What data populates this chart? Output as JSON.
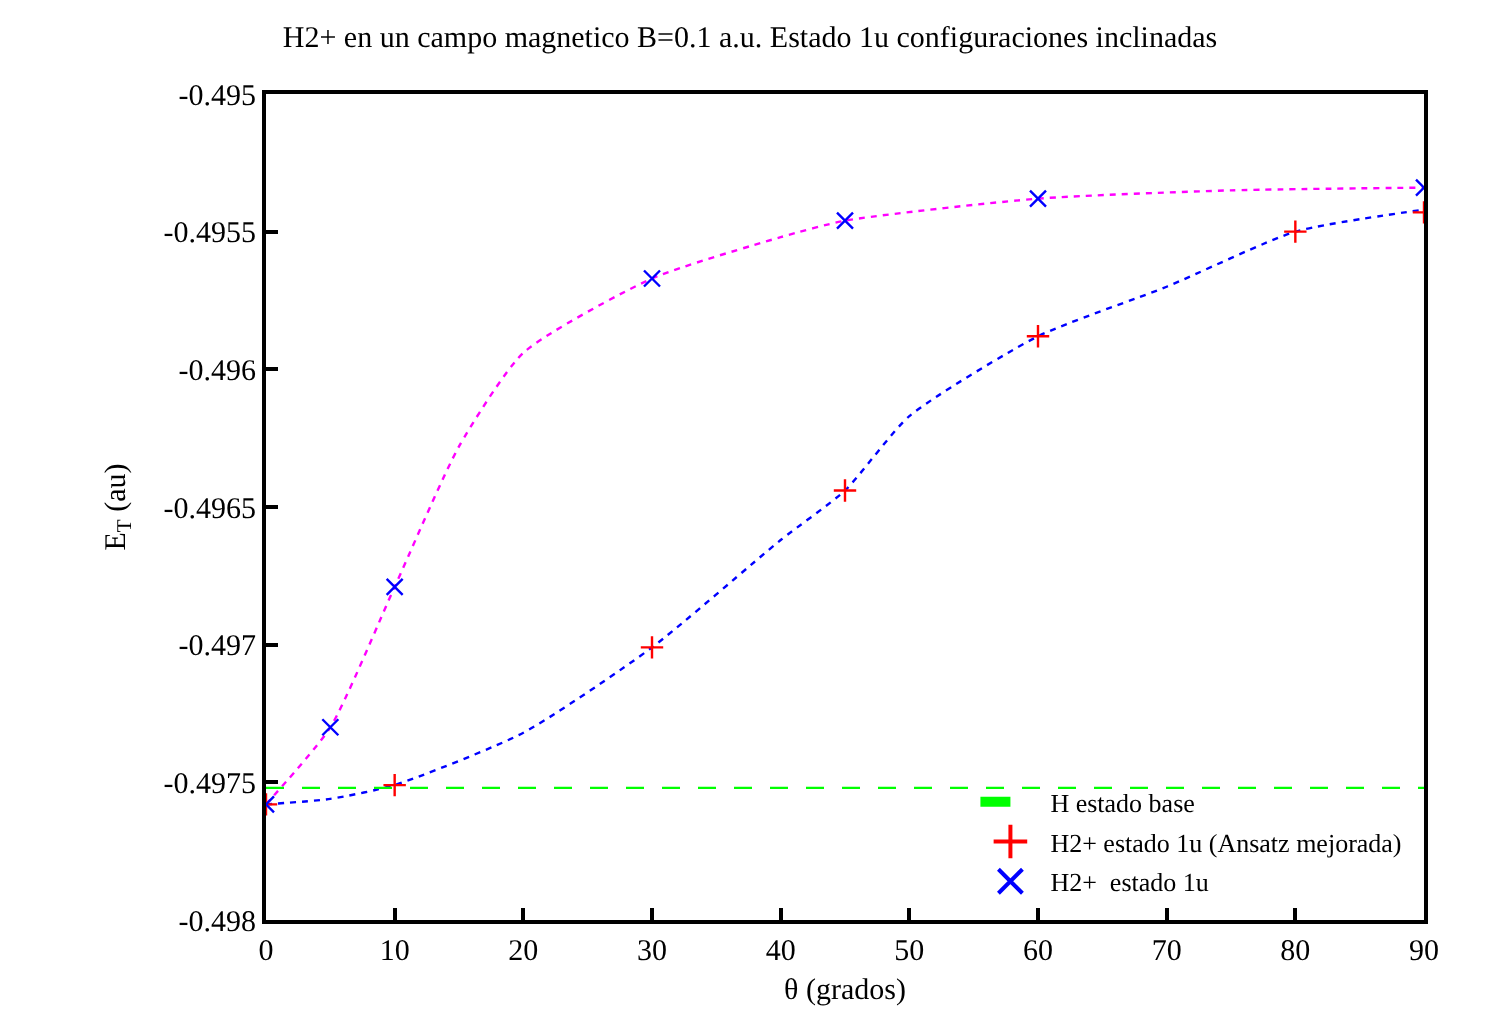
{
  "chart_data": {
    "type": "scatter",
    "title": "H2+ en un campo magnetico B=0.1 a.u. Estado 1u configuraciones inclinadas",
    "xlabel": "θ (grados)",
    "ylabel": "E$_{T}$ (au)",
    "xlim": [
      0,
      90
    ],
    "xticks": [
      0,
      10,
      20,
      30,
      40,
      50,
      60,
      70,
      80,
      90
    ],
    "ylim": [
      -0.498,
      -0.495
    ],
    "yticks": [
      -0.498,
      -0.4975,
      -0.497,
      -0.4965,
      -0.496,
      -0.4955,
      -0.495
    ],
    "legend": "bottom right",
    "series": [
      {
        "type": "line",
        "color": "#ff00ff",
        "line_style": "dotted",
        "marker": "none",
        "x": [
          0,
          5,
          10,
          15,
          20,
          30,
          40,
          45,
          60,
          75,
          90
        ],
        "values": [
          -0.49758,
          -0.4973,
          -0.49679,
          -0.49628,
          -0.49594,
          -0.49567,
          -0.49552,
          -0.49546,
          -0.49538,
          -0.49535,
          -0.49534
        ]
      },
      {
        "type": "line",
        "color": "#0000ff",
        "line_style": "dotted",
        "marker": "none",
        "x": [
          0,
          5,
          10,
          20,
          30,
          40,
          45,
          50,
          60,
          70,
          80,
          90
        ],
        "values": [
          -0.49758,
          -0.49756,
          -0.49751,
          -0.49732,
          -0.49701,
          -0.49662,
          -0.49644,
          -0.49617,
          -0.49588,
          -0.4957,
          -0.4955,
          -0.49542
        ]
      },
      {
        "type": "line",
        "name": "H estado base",
        "color": "#00ff00",
        "line_style": "dashed",
        "marker": "none",
        "x": [
          0,
          90
        ],
        "values": [
          -0.49752,
          -0.49752
        ]
      },
      {
        "name": "H2+ estado 1u (Ansatz mejorada)",
        "color": "#ff0000",
        "marker": "cross",
        "x": [
          0,
          10,
          30,
          45,
          60,
          80,
          90
        ],
        "values": [
          -0.49758,
          -0.49751,
          -0.49701,
          -0.49644,
          -0.49588,
          -0.4955,
          -0.49543
        ]
      },
      {
        "name": "H2+  estado 1u",
        "color": "#0000ff",
        "marker": "x",
        "x": [
          0,
          5,
          10,
          30,
          45,
          60,
          90
        ],
        "values": [
          -0.49758,
          -0.4973,
          -0.49679,
          -0.49567,
          -0.49546,
          -0.49538,
          -0.49534
        ]
      }
    ]
  }
}
